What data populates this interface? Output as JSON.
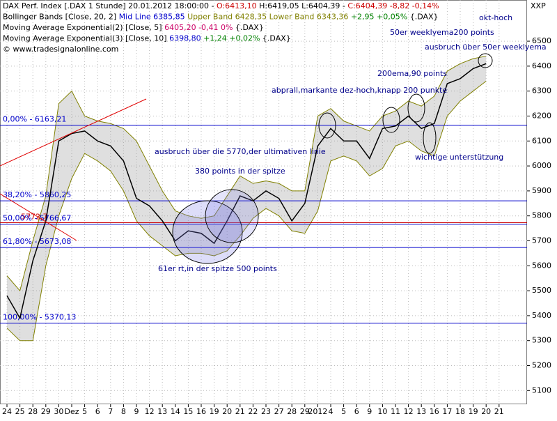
{
  "chart_data": {
    "type": "line",
    "header": [
      [
        {
          "text": "DAX Perf. Index [.DAX  1 Stunde] 20.01.2012 18:00:00 - ",
          "color": "#000000"
        },
        {
          "text": "O:6413,10",
          "color": "#cc0000"
        },
        {
          "text": " H:6419,05 L:6404,39 - ",
          "color": "#000000"
        },
        {
          "text": "C:6404,39 -8,82 -0,14%",
          "color": "#cc0000"
        }
      ],
      [
        {
          "text": "Bollinger Bands [Close, 20, 2] ",
          "color": "#000000"
        },
        {
          "text": "Mid Line 6385,85 ",
          "color": "#0000cc"
        },
        {
          "text": "Upper Band 6428,35 Lower Band 6343,36 ",
          "color": "#808000"
        },
        {
          "text": "+2,95 +0,05%",
          "color": "#008000"
        },
        {
          "text": " {.DAX}",
          "color": "#000000"
        }
      ],
      [
        {
          "text": "Moving Average Exponential(2) [Close, 5] ",
          "color": "#000000"
        },
        {
          "text": "6405,20 -0,41 0%",
          "color": "#cc0066"
        },
        {
          "text": " {.DAX}",
          "color": "#000000"
        }
      ],
      [
        {
          "text": "Moving Average Exponential(3) [Close, 10] ",
          "color": "#000000"
        },
        {
          "text": "6398,80 ",
          "color": "#0000cc"
        },
        {
          "text": "+1,24 +0,02%",
          "color": "#008000"
        },
        {
          "text": " {.DAX}",
          "color": "#000000"
        }
      ],
      [
        {
          "text": "© www.tradesignalonline.com",
          "color": "#000000"
        }
      ]
    ],
    "axis_label": "XXP",
    "categories": [
      "24",
      "25",
      "28",
      "29",
      "30",
      "Dez",
      "5",
      "6",
      "7",
      "8",
      "9",
      "12",
      "13",
      "14",
      "15",
      "16",
      "19",
      "20",
      "21",
      "22",
      "23",
      "27",
      "28",
      "29",
      "2012",
      "4",
      "5",
      "6",
      "9",
      "10",
      "11",
      "12",
      "13",
      "16",
      "17",
      "18",
      "19",
      "20",
      "21"
    ],
    "series": [
      {
        "name": "DAX",
        "color": "#000000",
        "values": [
          5480,
          5390,
          5620,
          5780,
          6100,
          6130,
          6140,
          6100,
          6080,
          6020,
          5870,
          5840,
          5780,
          5700,
          5740,
          5730,
          5690,
          5780,
          5880,
          5860,
          5900,
          5870,
          5780,
          5850,
          6080,
          6150,
          6100,
          6100,
          6030,
          6150,
          6160,
          6200,
          6150,
          6170,
          6330,
          6350,
          6390,
          6410,
          null
        ]
      }
    ],
    "bands": {
      "color": "#808000",
      "upper": [
        5560,
        5500,
        5700,
        5880,
        6250,
        6300,
        6200,
        6180,
        6170,
        6150,
        6100,
        6000,
        5900,
        5820,
        5800,
        5790,
        5800,
        5880,
        5960,
        5930,
        5940,
        5930,
        5900,
        5900,
        6200,
        6230,
        6180,
        6160,
        6140,
        6200,
        6220,
        6260,
        6240,
        6280,
        6380,
        6410,
        6430,
        6440,
        null
      ],
      "lower": [
        5350,
        5300,
        5300,
        5600,
        5800,
        5950,
        6050,
        6020,
        5980,
        5900,
        5780,
        5720,
        5680,
        5640,
        5650,
        5650,
        5640,
        5660,
        5720,
        5790,
        5830,
        5800,
        5740,
        5730,
        5820,
        6020,
        6040,
        6020,
        5960,
        5990,
        6080,
        6100,
        6060,
        6040,
        6200,
        6260,
        6300,
        6340,
        null
      ]
    },
    "levels": [
      {
        "value": 6163.21,
        "label": "0,00% - 6163,21",
        "color": "#0000cc"
      },
      {
        "value": 5860.25,
        "label": "38,20% - 5860,25",
        "color": "#0000cc"
      },
      {
        "value": 5772.7,
        "label": "5772,7",
        "color": "#cc0000"
      },
      {
        "value": 5766.67,
        "label": "50,00% - 5766,67",
        "color": "#0000cc"
      },
      {
        "value": 5673.08,
        "label": "61,80% - 5673,08",
        "color": "#0000cc"
      },
      {
        "value": 5370.13,
        "label": "100,00% - 5370,13",
        "color": "#0000cc"
      }
    ],
    "annotations": [
      "okt-hoch",
      "50er weeklyema200 points",
      "ausbruch über 50er weeklyema",
      "200ema,90 points",
      "abprall,markante dez-hoch,knapp 200 punkte",
      "ausbruch über die 5770,der ultimativen linie",
      "380 points in der spitze",
      "wichtige unterstützung",
      "61er rt,in der spitze 500 points"
    ],
    "ylim": [
      5045,
      6665
    ],
    "yticks": [
      5100,
      5200,
      5300,
      5400,
      5500,
      5600,
      5700,
      5800,
      5900,
      6000,
      6100,
      6200,
      6300,
      6400,
      6500
    ],
    "grid": true
  }
}
